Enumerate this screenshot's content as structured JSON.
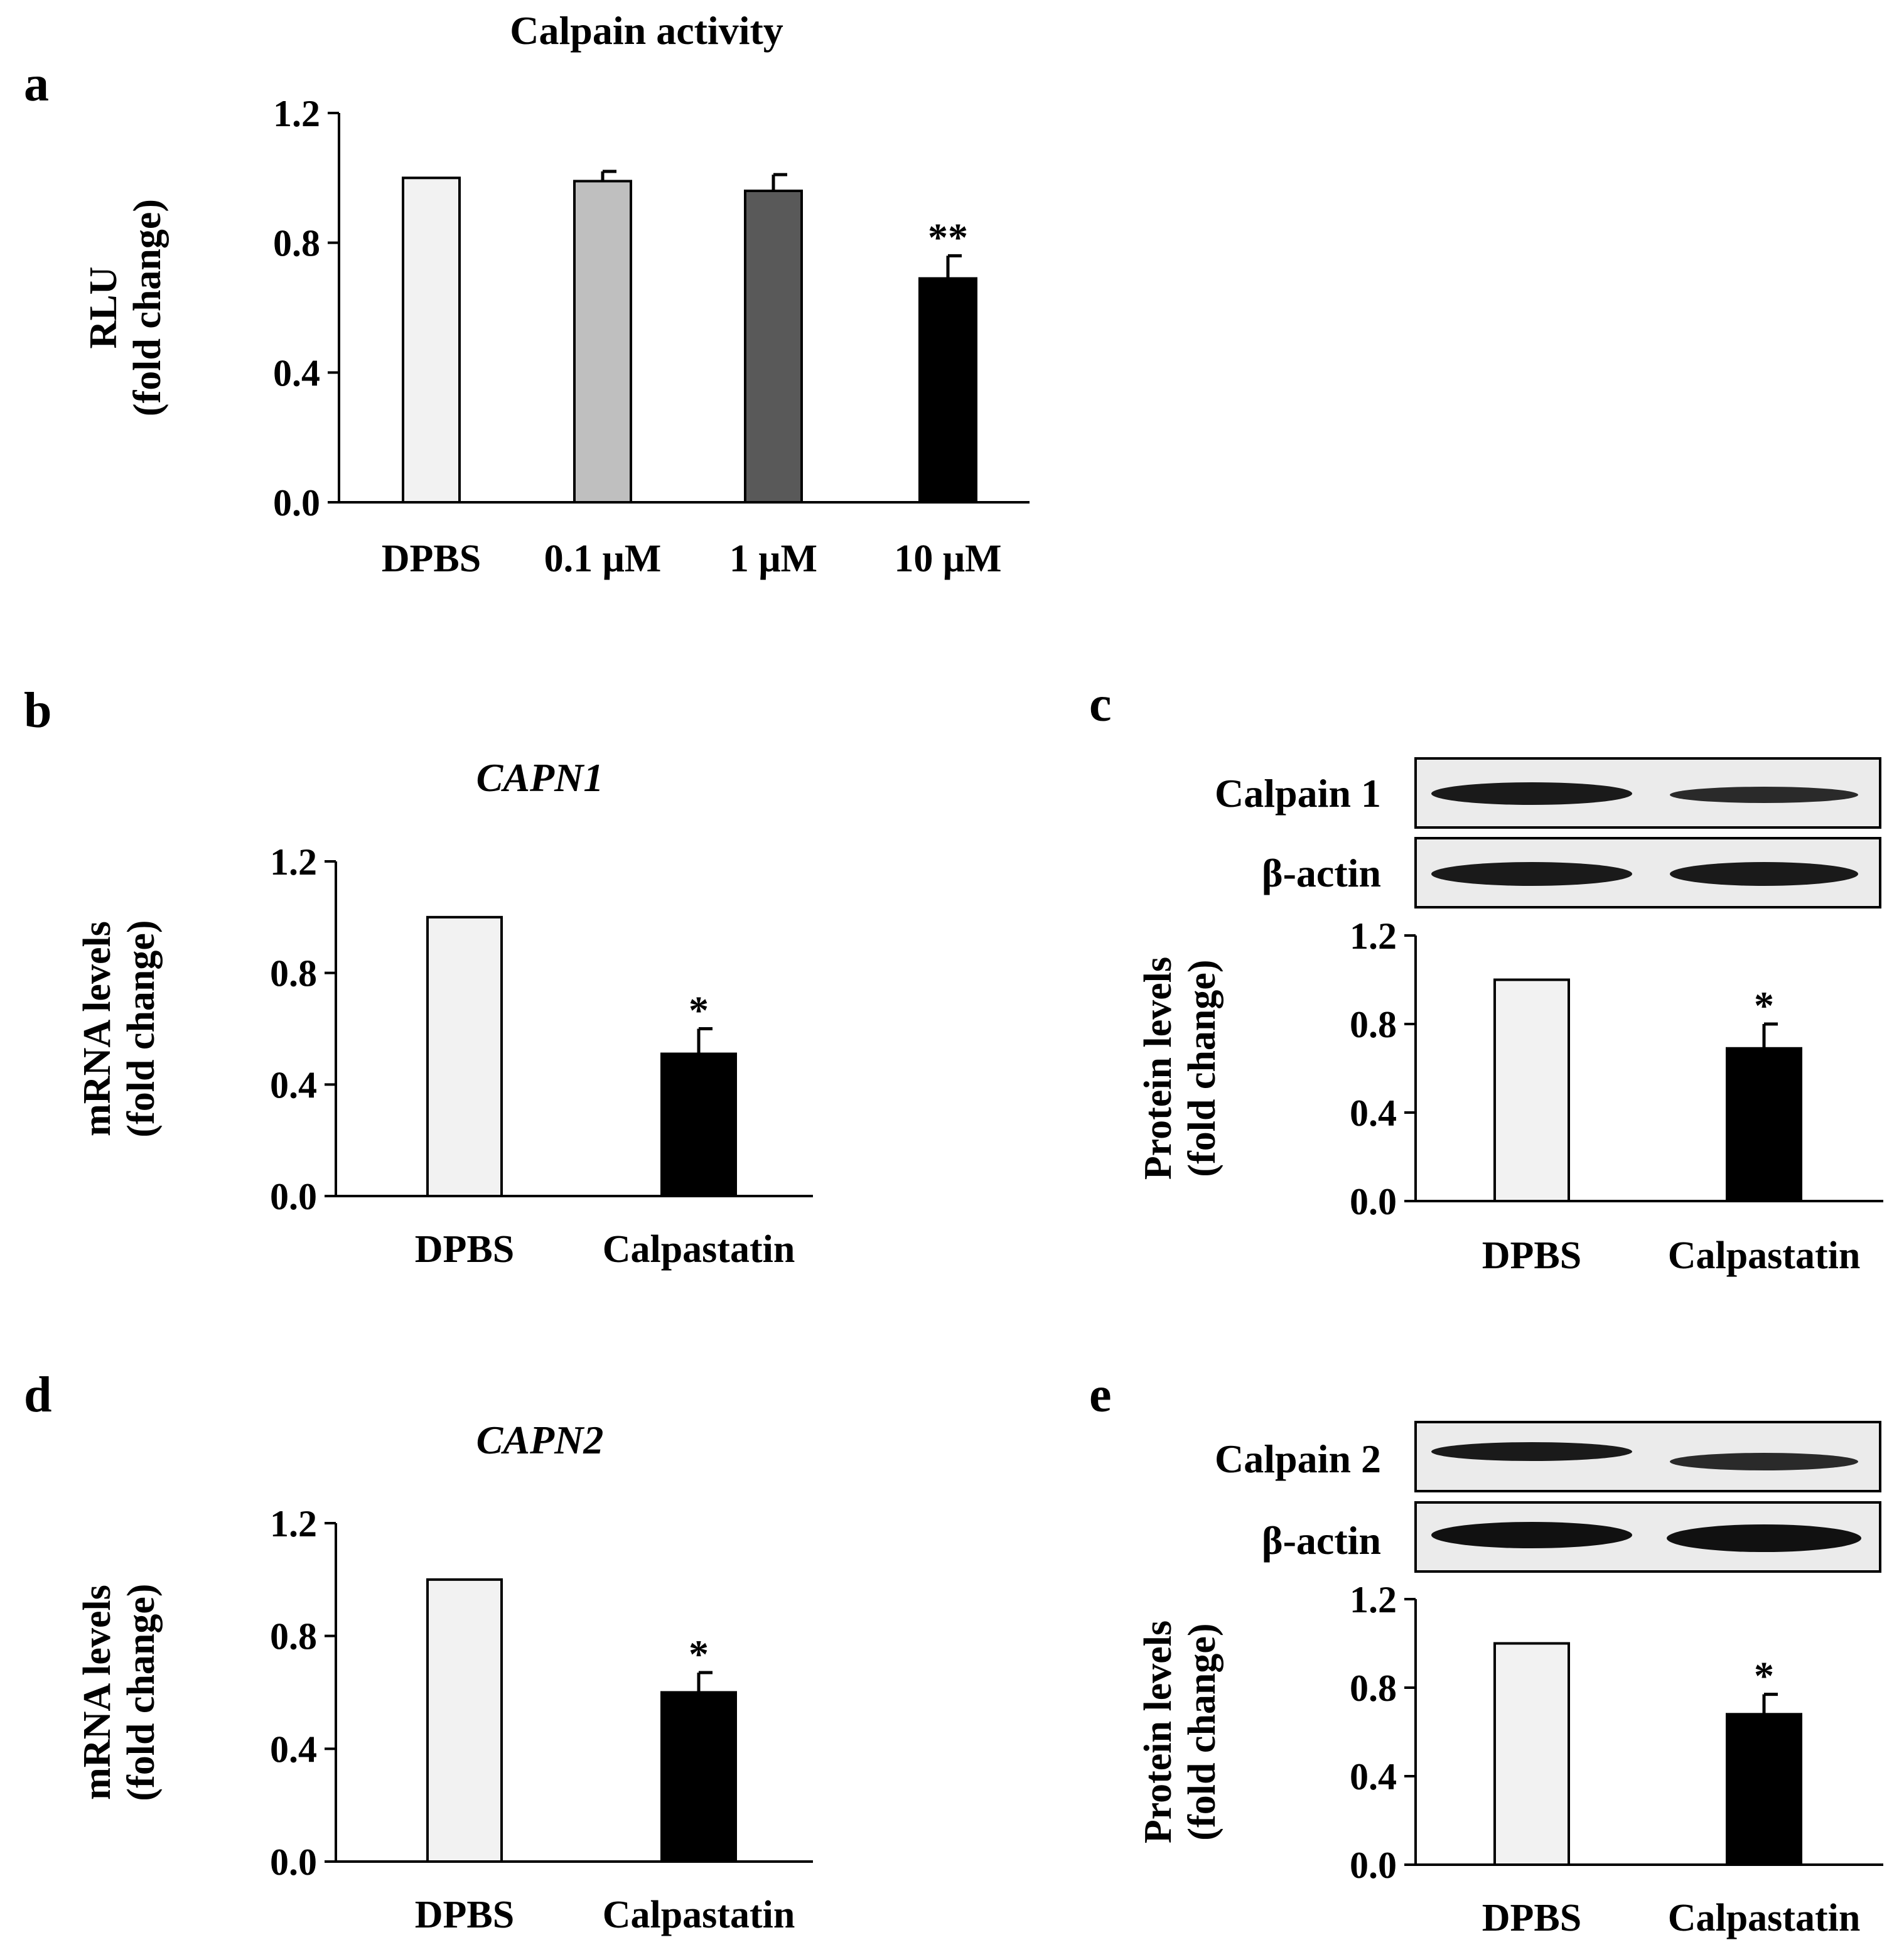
{
  "colors": {
    "dpbs": "#f2f2f2",
    "low": "#bfbfbf",
    "mid": "#595959",
    "high": "#000000",
    "axis": "#000000",
    "blot_bg": "#ebebeb",
    "band": "#1a1a1a"
  },
  "panel_labels": [
    "a",
    "b",
    "c",
    "d",
    "e"
  ],
  "blots": {
    "c": {
      "target_label": "Calpain 1",
      "control_label": "β-actin"
    },
    "e": {
      "target_label": "Calpain 2",
      "control_label": "β-actin"
    }
  },
  "chart_data": [
    {
      "id": "a",
      "type": "bar",
      "title": "Calpain activity",
      "title_italic": false,
      "ylabel": [
        "RLU",
        "(fold change)"
      ],
      "categories": [
        "DPBS",
        "0.1 μM",
        "1 μM",
        "10 μM"
      ],
      "values": [
        1.0,
        0.99,
        0.96,
        0.69
      ],
      "errors": [
        0,
        0.03,
        0.05,
        0.07
      ],
      "significance": [
        "",
        "",
        "",
        "**"
      ],
      "bar_colors": [
        "#f2f2f2",
        "#bfbfbf",
        "#595959",
        "#000000"
      ],
      "yticks": [
        "0.0",
        "0.4",
        "0.8",
        "1.2"
      ],
      "ylim": [
        0,
        1.2
      ],
      "grid": false
    },
    {
      "id": "b",
      "type": "bar",
      "title": "CAPN1",
      "title_italic": true,
      "ylabel": [
        "mRNA levels",
        "(fold change)"
      ],
      "categories": [
        "DPBS",
        "Calpastatin"
      ],
      "values": [
        1.0,
        0.51
      ],
      "errors": [
        0,
        0.09
      ],
      "significance": [
        "",
        "*"
      ],
      "bar_colors": [
        "#f2f2f2",
        "#000000"
      ],
      "yticks": [
        "0.0",
        "0.4",
        "0.8",
        "1.2"
      ],
      "ylim": [
        0,
        1.2
      ],
      "grid": false
    },
    {
      "id": "c",
      "type": "bar",
      "title": "",
      "title_italic": false,
      "ylabel": [
        "Protein levels",
        "(fold change)"
      ],
      "categories": [
        "DPBS",
        "Calpastatin"
      ],
      "values": [
        1.0,
        0.69
      ],
      "errors": [
        0,
        0.11
      ],
      "significance": [
        "",
        "*"
      ],
      "bar_colors": [
        "#f2f2f2",
        "#000000"
      ],
      "yticks": [
        "0.0",
        "0.4",
        "0.8",
        "1.2"
      ],
      "ylim": [
        0,
        1.2
      ],
      "grid": false
    },
    {
      "id": "d",
      "type": "bar",
      "title": "CAPN2",
      "title_italic": true,
      "ylabel": [
        "mRNA levels",
        "(fold change)"
      ],
      "categories": [
        "DPBS",
        "Calpastatin"
      ],
      "values": [
        1.0,
        0.6
      ],
      "errors": [
        0,
        0.07
      ],
      "significance": [
        "",
        "*"
      ],
      "bar_colors": [
        "#f2f2f2",
        "#000000"
      ],
      "yticks": [
        "0.0",
        "0.4",
        "0.8",
        "1.2"
      ],
      "ylim": [
        0,
        1.2
      ],
      "grid": false
    },
    {
      "id": "e",
      "type": "bar",
      "title": "",
      "title_italic": false,
      "ylabel": [
        "Protein levels",
        "(fold change)"
      ],
      "categories": [
        "DPBS",
        "Calpastatin"
      ],
      "values": [
        1.0,
        0.68
      ],
      "errors": [
        0,
        0.09
      ],
      "significance": [
        "",
        "*"
      ],
      "bar_colors": [
        "#f2f2f2",
        "#000000"
      ],
      "yticks": [
        "0.0",
        "0.4",
        "0.8",
        "1.2"
      ],
      "ylim": [
        0,
        1.2
      ],
      "grid": false
    }
  ]
}
